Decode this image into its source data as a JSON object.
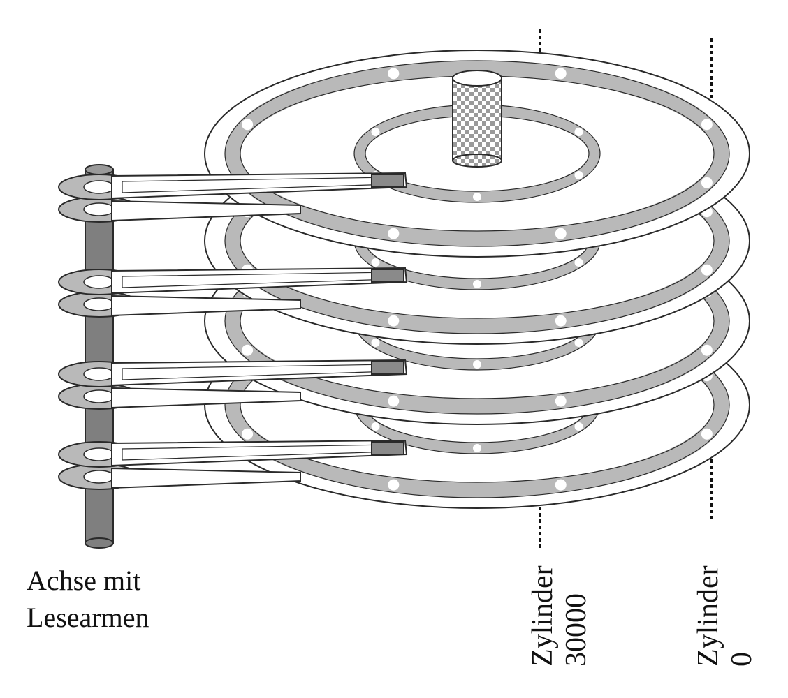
{
  "figure": {
    "axis_label_line1": "Achse mit",
    "axis_label_line2": "Lesearmen",
    "cylinder_inner_label": "Zylinder",
    "cylinder_inner_number": "30000",
    "cylinder_outer_label": "Zylinder",
    "cylinder_outer_number": "0",
    "platter_count": 4,
    "read_arm_count": 4
  },
  "colors": {
    "track_fill": "#b9b9b9",
    "axis_fill": "#7f7f7f",
    "head_fill": "#8a8a8a",
    "outline": "#2a2a2a",
    "background": "#ffffff"
  }
}
